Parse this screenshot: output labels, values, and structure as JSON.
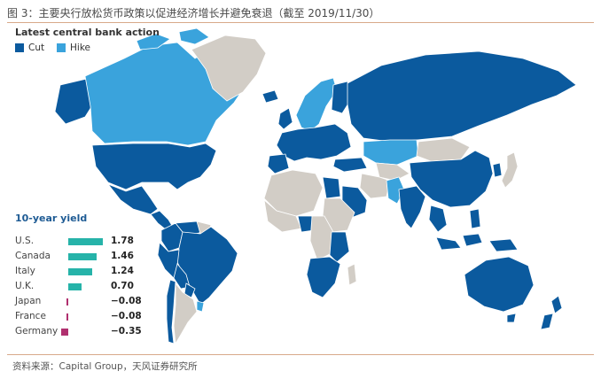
{
  "figure_title": "图 3：主要央行放松货币政策以促进经济增长并避免衰退（截至 2019/11/30）",
  "source": "资料来源：Capital Group，天风证券研究所",
  "map": {
    "title": "Latest central bank action",
    "legend": [
      {
        "label": "Cut",
        "color": "#0b5a9e"
      },
      {
        "label": "Hike",
        "color": "#3aa3dc"
      }
    ],
    "colors": {
      "cut": "#0b5a9e",
      "hike": "#3aa3dc",
      "none": "#d2cdc6",
      "water": "#ffffff"
    },
    "regions": [
      {
        "name": "Canada",
        "action": "hike"
      },
      {
        "name": "Alaska",
        "action": "cut"
      },
      {
        "name": "United States",
        "action": "cut"
      },
      {
        "name": "Mexico",
        "action": "cut"
      },
      {
        "name": "Central America",
        "action": "cut"
      },
      {
        "name": "Greenland",
        "action": "none"
      },
      {
        "name": "Iceland",
        "action": "cut"
      },
      {
        "name": "Brazil",
        "action": "cut"
      },
      {
        "name": "Colombia",
        "action": "cut"
      },
      {
        "name": "Venezuela",
        "action": "cut"
      },
      {
        "name": "Peru",
        "action": "cut"
      },
      {
        "name": "Bolivia",
        "action": "cut"
      },
      {
        "name": "Chile",
        "action": "cut"
      },
      {
        "name": "Argentina",
        "action": "none"
      },
      {
        "name": "Paraguay",
        "action": "cut"
      },
      {
        "name": "Uruguay",
        "action": "hike"
      },
      {
        "name": "Scandinavia",
        "action": "hike"
      },
      {
        "name": "Western Europe",
        "action": "cut"
      },
      {
        "name": "Russia",
        "action": "cut"
      },
      {
        "name": "Kazakhstan",
        "action": "hike"
      },
      {
        "name": "Mongolia",
        "action": "none"
      },
      {
        "name": "China",
        "action": "cut"
      },
      {
        "name": "India",
        "action": "cut"
      },
      {
        "name": "Pakistan",
        "action": "hike"
      },
      {
        "name": "Iran",
        "action": "none"
      },
      {
        "name": "Saudi Arabia",
        "action": "cut"
      },
      {
        "name": "Egypt",
        "action": "cut"
      },
      {
        "name": "North Africa",
        "action": "none"
      },
      {
        "name": "Nigeria",
        "action": "cut"
      },
      {
        "name": "Southern Africa",
        "action": "cut"
      },
      {
        "name": "Southeast Asia",
        "action": "cut"
      },
      {
        "name": "Japan",
        "action": "none"
      },
      {
        "name": "Australia",
        "action": "cut"
      },
      {
        "name": "New Zealand",
        "action": "cut"
      }
    ]
  },
  "yields": {
    "title": "10-year yield",
    "bar_colors": {
      "positive": "#26b3a9",
      "negative": "#b0306f"
    },
    "rows": [
      {
        "country": "U.S.",
        "value": 1.78,
        "label": "1.78"
      },
      {
        "country": "Canada",
        "value": 1.46,
        "label": "1.46"
      },
      {
        "country": "Italy",
        "value": 1.24,
        "label": "1.24"
      },
      {
        "country": "U.K.",
        "value": 0.7,
        "label": "0.70"
      },
      {
        "country": "Japan",
        "value": -0.08,
        "label": "−0.08"
      },
      {
        "country": "France",
        "value": -0.08,
        "label": "−0.08"
      },
      {
        "country": "Germany",
        "value": -0.35,
        "label": "−0.35"
      }
    ]
  }
}
